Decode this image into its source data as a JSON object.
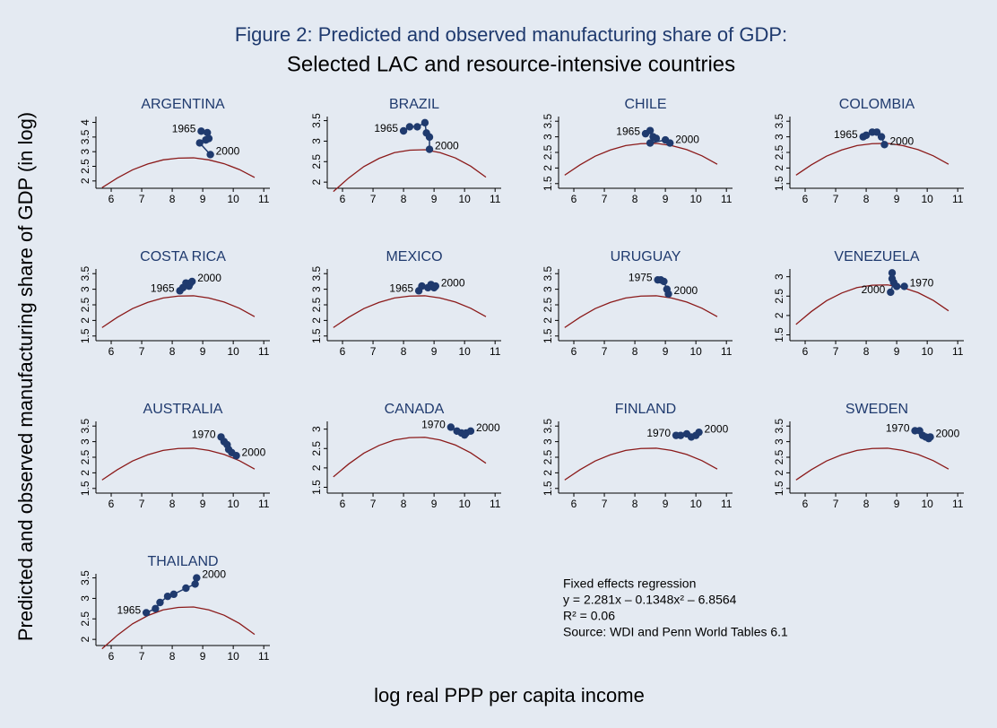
{
  "title": "Figure 2: Predicted and observed manufacturing share of GDP:",
  "subtitle": "Selected LAC and resource-intensive countries",
  "x_label": "log real PPP per capita income",
  "y_label": "Predicted and observed manufacturing share of GDP (in log)",
  "note": [
    "Fixed effects regression",
    "y = 2.281x – 0.1348x² – 6.8564",
    "R² = 0.06",
    "Source: WDI and Penn World Tables 6.1"
  ],
  "chart_data": [
    {
      "type": "line",
      "title": "ARGENTINA",
      "xlim": [
        5.5,
        11.2
      ],
      "xticks": [
        6,
        7,
        8,
        9,
        10,
        11
      ],
      "ylim": [
        1.75,
        4.2
      ],
      "yticks": [
        2,
        2.5,
        3,
        3.5,
        4
      ],
      "series": [
        {
          "color": "#8b1a1a",
          "x": [
            5.7,
            6.2,
            6.7,
            7.2,
            7.7,
            8.2,
            8.7,
            9.2,
            9.7,
            10.2,
            10.7
          ],
          "values": [
            1.77,
            2.1,
            2.38,
            2.58,
            2.72,
            2.78,
            2.79,
            2.72,
            2.59,
            2.39,
            2.12
          ]
        },
        {
          "color": "#1f3a6e",
          "x": [
            8.95,
            9.15,
            9.2,
            9.1,
            8.9,
            9.25
          ],
          "values": [
            3.7,
            3.65,
            3.45,
            3.4,
            3.3,
            2.9
          ],
          "labels": [
            "1965",
            null,
            null,
            null,
            null,
            "2000"
          ]
        }
      ]
    },
    {
      "type": "line",
      "title": "BRAZIL",
      "xlim": [
        5.5,
        11.2
      ],
      "xticks": [
        6,
        7,
        8,
        9,
        10,
        11
      ],
      "ylim": [
        1.85,
        3.6
      ],
      "yticks": [
        2,
        2.5,
        3,
        3.5
      ],
      "series": [
        {
          "color": "#8b1a1a",
          "x": [
            5.7,
            6.2,
            6.7,
            7.2,
            7.7,
            8.2,
            8.7,
            9.2,
            9.7,
            10.2,
            10.7
          ],
          "values": [
            1.77,
            2.1,
            2.38,
            2.58,
            2.72,
            2.78,
            2.79,
            2.72,
            2.59,
            2.39,
            2.12
          ]
        },
        {
          "color": "#1f3a6e",
          "x": [
            8.0,
            8.2,
            8.45,
            8.7,
            8.75,
            8.85,
            8.85
          ],
          "values": [
            3.25,
            3.35,
            3.35,
            3.45,
            3.2,
            3.1,
            2.8
          ],
          "labels": [
            "1965",
            null,
            null,
            null,
            null,
            null,
            "2000"
          ]
        }
      ]
    },
    {
      "type": "line",
      "title": "CHILE",
      "xlim": [
        5.5,
        11.2
      ],
      "xticks": [
        6,
        7,
        8,
        9,
        10,
        11
      ],
      "ylim": [
        1.35,
        3.65
      ],
      "yticks": [
        1.5,
        2,
        2.5,
        3,
        3.5
      ],
      "series": [
        {
          "color": "#8b1a1a",
          "x": [
            5.7,
            6.2,
            6.7,
            7.2,
            7.7,
            8.2,
            8.7,
            9.2,
            9.7,
            10.2,
            10.7
          ],
          "values": [
            1.77,
            2.1,
            2.38,
            2.58,
            2.72,
            2.78,
            2.79,
            2.72,
            2.59,
            2.39,
            2.12
          ]
        },
        {
          "color": "#1f3a6e",
          "x": [
            8.35,
            8.5,
            8.6,
            8.7,
            8.5,
            9.0,
            9.15
          ],
          "values": [
            3.1,
            3.2,
            3.0,
            2.95,
            2.8,
            2.9,
            2.8
          ],
          "labels": [
            "1965",
            null,
            null,
            null,
            null,
            null,
            "2000"
          ]
        }
      ]
    },
    {
      "type": "line",
      "title": "COLOMBIA",
      "xlim": [
        5.5,
        11.2
      ],
      "xticks": [
        6,
        7,
        8,
        9,
        10,
        11
      ],
      "ylim": [
        1.35,
        3.65
      ],
      "yticks": [
        1.5,
        2,
        2.5,
        3,
        3.5
      ],
      "series": [
        {
          "color": "#8b1a1a",
          "x": [
            5.7,
            6.2,
            6.7,
            7.2,
            7.7,
            8.2,
            8.7,
            9.2,
            9.7,
            10.2,
            10.7
          ],
          "values": [
            1.77,
            2.1,
            2.38,
            2.58,
            2.72,
            2.78,
            2.79,
            2.72,
            2.59,
            2.39,
            2.12
          ]
        },
        {
          "color": "#1f3a6e",
          "x": [
            7.9,
            8.0,
            8.2,
            8.35,
            8.5,
            8.6
          ],
          "values": [
            3.0,
            3.05,
            3.15,
            3.15,
            3.0,
            2.75
          ],
          "labels": [
            "1965",
            null,
            null,
            null,
            null,
            "2000"
          ]
        }
      ]
    },
    {
      "type": "line",
      "title": "COSTA RICA",
      "xlim": [
        5.5,
        11.2
      ],
      "xticks": [
        6,
        7,
        8,
        9,
        10,
        11
      ],
      "ylim": [
        1.35,
        3.65
      ],
      "yticks": [
        1.5,
        2,
        2.5,
        3,
        3.5
      ],
      "series": [
        {
          "color": "#8b1a1a",
          "x": [
            5.7,
            6.2,
            6.7,
            7.2,
            7.7,
            8.2,
            8.7,
            9.2,
            9.7,
            10.2,
            10.7
          ],
          "values": [
            1.77,
            2.1,
            2.38,
            2.58,
            2.72,
            2.78,
            2.79,
            2.72,
            2.59,
            2.39,
            2.12
          ]
        },
        {
          "color": "#1f3a6e",
          "x": [
            8.25,
            8.35,
            8.45,
            8.55,
            8.6,
            8.65
          ],
          "values": [
            2.95,
            3.05,
            3.2,
            3.1,
            3.2,
            3.25
          ],
          "labels": [
            "1965",
            null,
            null,
            null,
            null,
            "2000"
          ]
        }
      ]
    },
    {
      "type": "line",
      "title": "MEXICO",
      "xlim": [
        5.5,
        11.2
      ],
      "xticks": [
        6,
        7,
        8,
        9,
        10,
        11
      ],
      "ylim": [
        1.35,
        3.65
      ],
      "yticks": [
        1.5,
        2,
        2.5,
        3,
        3.5
      ],
      "series": [
        {
          "color": "#8b1a1a",
          "x": [
            5.7,
            6.2,
            6.7,
            7.2,
            7.7,
            8.2,
            8.7,
            9.2,
            9.7,
            10.2,
            10.7
          ],
          "values": [
            1.77,
            2.1,
            2.38,
            2.58,
            2.72,
            2.78,
            2.79,
            2.72,
            2.59,
            2.39,
            2.12
          ]
        },
        {
          "color": "#1f3a6e",
          "x": [
            8.5,
            8.6,
            8.8,
            8.9,
            9.0,
            9.05
          ],
          "values": [
            2.95,
            3.1,
            3.05,
            3.15,
            3.05,
            3.1
          ],
          "labels": [
            "1965",
            null,
            null,
            null,
            null,
            "2000"
          ]
        }
      ]
    },
    {
      "type": "line",
      "title": "URUGUAY",
      "xlim": [
        5.5,
        11.2
      ],
      "xticks": [
        6,
        7,
        8,
        9,
        10,
        11
      ],
      "ylim": [
        1.35,
        3.65
      ],
      "yticks": [
        1.5,
        2,
        2.5,
        3,
        3.5
      ],
      "series": [
        {
          "color": "#8b1a1a",
          "x": [
            5.7,
            6.2,
            6.7,
            7.2,
            7.7,
            8.2,
            8.7,
            9.2,
            9.7,
            10.2,
            10.7
          ],
          "values": [
            1.77,
            2.1,
            2.38,
            2.58,
            2.72,
            2.78,
            2.79,
            2.72,
            2.59,
            2.39,
            2.12
          ]
        },
        {
          "color": "#1f3a6e",
          "x": [
            8.75,
            8.85,
            8.95,
            9.05,
            9.1
          ],
          "values": [
            3.3,
            3.3,
            3.25,
            3.0,
            2.85
          ],
          "labels": [
            "1975",
            null,
            null,
            null,
            "2000"
          ]
        }
      ]
    },
    {
      "type": "line",
      "title": "VENEZUELA",
      "xlim": [
        5.5,
        11.2
      ],
      "xticks": [
        6,
        7,
        8,
        9,
        10,
        11
      ],
      "ylim": [
        1.35,
        3.2
      ],
      "yticks": [
        1.5,
        2,
        2.5,
        3
      ],
      "series": [
        {
          "color": "#8b1a1a",
          "x": [
            5.7,
            6.2,
            6.7,
            7.2,
            7.7,
            8.2,
            8.7,
            9.2,
            9.7,
            10.2,
            10.7
          ],
          "values": [
            1.77,
            2.1,
            2.38,
            2.58,
            2.72,
            2.78,
            2.79,
            2.72,
            2.59,
            2.39,
            2.12
          ]
        },
        {
          "color": "#1f3a6e",
          "x": [
            9.25,
            9.0,
            8.85,
            8.85,
            8.9,
            8.8
          ],
          "values": [
            2.75,
            2.75,
            3.1,
            2.95,
            2.85,
            2.6
          ],
          "labels": [
            "1970",
            null,
            null,
            null,
            null,
            "2000"
          ]
        }
      ]
    },
    {
      "type": "line",
      "title": "AUSTRALIA",
      "xlim": [
        5.5,
        11.2
      ],
      "xticks": [
        6,
        7,
        8,
        9,
        10,
        11
      ],
      "ylim": [
        1.35,
        3.65
      ],
      "yticks": [
        1.5,
        2,
        2.5,
        3,
        3.5
      ],
      "series": [
        {
          "color": "#8b1a1a",
          "x": [
            5.7,
            6.2,
            6.7,
            7.2,
            7.7,
            8.2,
            8.7,
            9.2,
            9.7,
            10.2,
            10.7
          ],
          "values": [
            1.77,
            2.1,
            2.38,
            2.58,
            2.72,
            2.78,
            2.79,
            2.72,
            2.59,
            2.39,
            2.12
          ]
        },
        {
          "color": "#1f3a6e",
          "x": [
            9.6,
            9.7,
            9.8,
            9.85,
            9.95,
            10.1
          ],
          "values": [
            3.15,
            3.0,
            2.9,
            2.75,
            2.65,
            2.55
          ],
          "labels": [
            "1970",
            null,
            null,
            null,
            null,
            "2000"
          ]
        }
      ]
    },
    {
      "type": "line",
      "title": "CANADA",
      "xlim": [
        5.5,
        11.2
      ],
      "xticks": [
        6,
        7,
        8,
        9,
        10,
        11
      ],
      "ylim": [
        1.35,
        3.2
      ],
      "yticks": [
        1.5,
        2,
        2.5,
        3
      ],
      "series": [
        {
          "color": "#8b1a1a",
          "x": [
            5.7,
            6.2,
            6.7,
            7.2,
            7.7,
            8.2,
            8.7,
            9.2,
            9.7,
            10.2,
            10.7
          ],
          "values": [
            1.77,
            2.1,
            2.38,
            2.58,
            2.72,
            2.78,
            2.79,
            2.72,
            2.59,
            2.39,
            2.12
          ]
        },
        {
          "color": "#1f3a6e",
          "x": [
            9.55,
            9.75,
            9.9,
            10.0,
            10.05,
            10.2
          ],
          "values": [
            3.05,
            2.95,
            2.9,
            2.85,
            2.9,
            2.95
          ],
          "labels": [
            "1970",
            null,
            null,
            null,
            null,
            "2000"
          ]
        }
      ]
    },
    {
      "type": "line",
      "title": "FINLAND",
      "xlim": [
        5.5,
        11.2
      ],
      "xticks": [
        6,
        7,
        8,
        9,
        10,
        11
      ],
      "ylim": [
        1.35,
        3.65
      ],
      "yticks": [
        1.5,
        2,
        2.5,
        3,
        3.5
      ],
      "series": [
        {
          "color": "#8b1a1a",
          "x": [
            5.7,
            6.2,
            6.7,
            7.2,
            7.7,
            8.2,
            8.7,
            9.2,
            9.7,
            10.2,
            10.7
          ],
          "values": [
            1.77,
            2.1,
            2.38,
            2.58,
            2.72,
            2.78,
            2.79,
            2.72,
            2.59,
            2.39,
            2.12
          ]
        },
        {
          "color": "#1f3a6e",
          "x": [
            9.35,
            9.5,
            9.7,
            9.85,
            10.0,
            10.1
          ],
          "values": [
            3.2,
            3.2,
            3.25,
            3.15,
            3.2,
            3.3
          ],
          "labels": [
            "1970",
            null,
            null,
            null,
            null,
            "2000"
          ]
        }
      ]
    },
    {
      "type": "line",
      "title": "SWEDEN",
      "xlim": [
        5.5,
        11.2
      ],
      "xticks": [
        6,
        7,
        8,
        9,
        10,
        11
      ],
      "ylim": [
        1.35,
        3.65
      ],
      "yticks": [
        1.5,
        2,
        2.5,
        3,
        3.5
      ],
      "series": [
        {
          "color": "#8b1a1a",
          "x": [
            5.7,
            6.2,
            6.7,
            7.2,
            7.7,
            8.2,
            8.7,
            9.2,
            9.7,
            10.2,
            10.7
          ],
          "values": [
            1.77,
            2.1,
            2.38,
            2.58,
            2.72,
            2.78,
            2.79,
            2.72,
            2.59,
            2.39,
            2.12
          ]
        },
        {
          "color": "#1f3a6e",
          "x": [
            9.6,
            9.75,
            9.85,
            9.95,
            10.05,
            10.1
          ],
          "values": [
            3.35,
            3.35,
            3.2,
            3.15,
            3.1,
            3.15
          ],
          "labels": [
            "1970",
            null,
            null,
            null,
            null,
            "2000"
          ]
        }
      ]
    },
    {
      "type": "line",
      "title": "THAILAND",
      "xlim": [
        5.5,
        11.2
      ],
      "xticks": [
        6,
        7,
        8,
        9,
        10,
        11
      ],
      "ylim": [
        1.85,
        3.6
      ],
      "yticks": [
        2,
        2.5,
        3,
        3.5
      ],
      "series": [
        {
          "color": "#8b1a1a",
          "x": [
            5.7,
            6.2,
            6.7,
            7.2,
            7.7,
            8.2,
            8.7,
            9.2,
            9.7,
            10.2,
            10.7
          ],
          "values": [
            1.77,
            2.1,
            2.38,
            2.58,
            2.72,
            2.78,
            2.79,
            2.72,
            2.59,
            2.39,
            2.12
          ]
        },
        {
          "color": "#1f3a6e",
          "x": [
            7.15,
            7.45,
            7.6,
            7.85,
            8.05,
            8.45,
            8.75,
            8.8
          ],
          "values": [
            2.65,
            2.75,
            2.9,
            3.05,
            3.1,
            3.25,
            3.35,
            3.5
          ],
          "labels": [
            "1965",
            null,
            null,
            null,
            null,
            null,
            null,
            "2000"
          ]
        }
      ]
    }
  ]
}
